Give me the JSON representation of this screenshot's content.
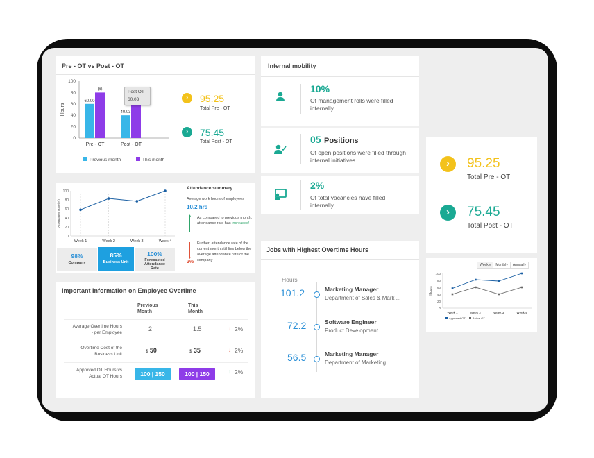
{
  "colors": {
    "blue": "#38b6e8",
    "purple": "#8e3ce8",
    "yellow": "#f3c21b",
    "teal": "#1aa993",
    "down": "#e0533a",
    "up": "#2fa56a",
    "navy": "#1a5fa3"
  },
  "pre_post": {
    "title": "Pre - OT vs Post - OT",
    "tooltip_title": "Post OT",
    "tooltip_value": "60.03",
    "total_pre_value": "95.25",
    "total_pre_label": "Total Pre - OT",
    "total_post_value": "75.45",
    "total_post_label": "Total Post - OT"
  },
  "chart_data": [
    {
      "type": "bar",
      "title": "Pre - OT vs Post - OT",
      "ylabel": "Hours",
      "categories": [
        "Pre - OT",
        "Post - OT"
      ],
      "series": [
        {
          "name": "Previous month",
          "values": [
            60.0,
            40.03
          ]
        },
        {
          "name": "This month",
          "values": [
            80,
            60.03
          ]
        }
      ],
      "data_labels": [
        [
          "60.00",
          "80"
        ],
        [
          "40.03",
          "60.03"
        ]
      ],
      "ylim": [
        0,
        100
      ],
      "yticks": [
        "0",
        "20",
        "40",
        "60",
        "80",
        "100"
      ],
      "legend": "bottom"
    },
    {
      "type": "line",
      "ylabel": "Attendance Rate(%)",
      "categories": [
        "Week 1",
        "Week 2",
        "Week 3",
        "Week 4"
      ],
      "series": [
        {
          "values": [
            58,
            83,
            77,
            100
          ]
        }
      ],
      "ylim": [
        0,
        100
      ],
      "yticks": [
        "0",
        "20",
        "40",
        "60",
        "80",
        "100"
      ]
    },
    {
      "type": "line",
      "ylabel": "Hours",
      "categories": [
        "Week 1",
        "Week 2",
        "Week 3",
        "Week 4"
      ],
      "series": [
        {
          "name": "Approved OT",
          "values": [
            57,
            82,
            78,
            100
          ]
        },
        {
          "name": "Actual OT",
          "values": [
            40,
            60,
            40,
            60
          ]
        }
      ],
      "ylim": [
        0,
        100
      ],
      "yticks": [
        "0",
        "20",
        "40",
        "60",
        "80",
        "100"
      ],
      "legend": "bottom"
    }
  ],
  "attendance": {
    "summary_title": "Attendance summary",
    "avg_label": "Average work hours of employees",
    "avg_value": "10.2 hrs",
    "note1": "As compared to previous month, attendance rate has",
    "note1_status": "increased!",
    "note2": "Further, attendance rate of the current month still lies below the average attendance rate of the company",
    "note2_value": "2%",
    "stats": [
      {
        "value": "98%",
        "label": "Company"
      },
      {
        "value": "85%",
        "label": "Business Unit"
      },
      {
        "value": "100%",
        "label": "Forecasted Attendance Rate"
      }
    ]
  },
  "important": {
    "title": "Important Information on Employee Overtime",
    "col_prev": "Previous Month",
    "col_this": "This Month",
    "rows": [
      {
        "label": "Average Overtime Hours - per Employee",
        "prev": "2",
        "this": "1.5",
        "change": "2%"
      },
      {
        "label": "Overtime Cost of the Business Unit",
        "prev_cur": "$",
        "prev": "50",
        "this_cur": "$",
        "this": "35",
        "change": "2%"
      },
      {
        "label": "Approved OT Hours vs Actual OT Hours",
        "prev_a": "100",
        "prev_b": "150",
        "this_a": "100",
        "this_b": "150",
        "change": "2%"
      }
    ]
  },
  "mobility": {
    "title": "Internal mobility",
    "items": [
      {
        "value": "10%",
        "text": "Of management rolls were filled internally"
      },
      {
        "value": "05",
        "suffix": "Positions",
        "text": "Of open positions were filled through internal initiatives"
      },
      {
        "value": "2%",
        "text": "Of total vacancies have filled internally"
      }
    ]
  },
  "jobs": {
    "title": "Jobs with Highest Overtime Hours",
    "hours_label": "Hours",
    "items": [
      {
        "hours": "101.2",
        "role": "Marketing Manager",
        "dept": "Department of Sales & Mark ..."
      },
      {
        "hours": "72.2",
        "role": "Software Engineer",
        "dept": "Product Development"
      },
      {
        "hours": "56.5",
        "role": "Marketing Manager",
        "dept": "Department of Marketing"
      }
    ]
  },
  "totals": {
    "pre_value": "95.25",
    "pre_label": "Total Pre - OT",
    "post_value": "75.45",
    "post_label": "Total Post - OT"
  },
  "ot_chart": {
    "tabs": [
      "Weekly",
      "Monthly",
      "Annually"
    ],
    "legend": [
      "Approved OT",
      "Actual OT"
    ]
  }
}
